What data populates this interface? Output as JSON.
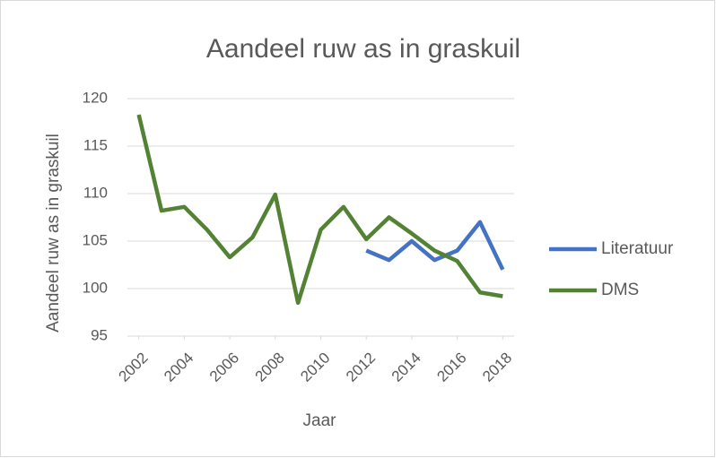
{
  "chart_data": {
    "type": "line",
    "title": "Aandeel ruw as in graskuil",
    "xlabel": "Jaar",
    "ylabel": "Aandeel ruw as in graskuil",
    "x": [
      2002,
      2003,
      2004,
      2005,
      2006,
      2007,
      2008,
      2009,
      2010,
      2011,
      2012,
      2013,
      2014,
      2015,
      2016,
      2017,
      2018
    ],
    "xlim": [
      2001.5,
      2018.5
    ],
    "xticks": [
      2002,
      2004,
      2006,
      2008,
      2010,
      2012,
      2014,
      2016,
      2018
    ],
    "ylim": [
      95,
      120
    ],
    "yticks": [
      95,
      100,
      105,
      110,
      115,
      120
    ],
    "grid": true,
    "legend": "right",
    "series": [
      {
        "name": "Literatuur",
        "color": "#4472c4",
        "values": [
          null,
          null,
          null,
          null,
          null,
          null,
          null,
          null,
          null,
          null,
          104.0,
          103.0,
          105.0,
          103.0,
          104.0,
          107.0,
          102.0
        ]
      },
      {
        "name": "DMS",
        "color": "#548235",
        "values": [
          118.3,
          108.2,
          108.6,
          106.2,
          103.3,
          105.4,
          109.9,
          98.5,
          106.2,
          108.6,
          105.2,
          107.5,
          105.8,
          104.0,
          102.9,
          99.6,
          99.2
        ]
      }
    ]
  }
}
